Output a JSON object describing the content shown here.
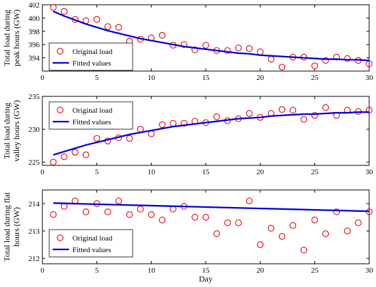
{
  "chart_data": [
    {
      "type": "scatter",
      "ylabel_lines": [
        "Total load during",
        "peak hours (GW)"
      ],
      "xlim": [
        0,
        30
      ],
      "ylim": [
        392,
        402
      ],
      "xticks": [
        0,
        5,
        10,
        15,
        20,
        25,
        30
      ],
      "yticks": [
        394,
        396,
        398,
        400,
        402
      ],
      "legend_position": "bottom-left",
      "series": [
        {
          "name": "Original load",
          "style": "markers",
          "x": [
            1,
            2,
            3,
            4,
            5,
            6,
            7,
            8,
            9,
            10,
            11,
            12,
            13,
            14,
            15,
            16,
            17,
            18,
            19,
            20,
            21,
            22,
            23,
            24,
            25,
            26,
            27,
            28,
            29,
            30
          ],
          "y": [
            401.6,
            401.0,
            399.8,
            399.6,
            399.8,
            398.7,
            398.6,
            396.5,
            396.8,
            397.0,
            397.4,
            395.9,
            396.0,
            395.2,
            395.9,
            395.1,
            395.1,
            395.5,
            395.4,
            394.9,
            393.8,
            392.6,
            394.1,
            394.1,
            392.8,
            393.6,
            394.1,
            393.9,
            393.6,
            393.1
          ]
        },
        {
          "name": "Fitted values",
          "style": "line",
          "x": [
            1,
            2,
            3,
            4,
            5,
            6,
            7,
            8,
            9,
            10,
            11,
            12,
            13,
            14,
            15,
            16,
            17,
            18,
            19,
            20,
            21,
            22,
            23,
            24,
            25,
            26,
            27,
            28,
            29,
            30
          ],
          "y": [
            401.0,
            400.3,
            399.7,
            399.1,
            398.6,
            398.1,
            397.7,
            397.3,
            396.9,
            396.6,
            396.3,
            396.0,
            395.7,
            395.5,
            395.3,
            395.1,
            394.9,
            394.7,
            394.6,
            394.4,
            394.3,
            394.2,
            394.1,
            394.0,
            393.9,
            393.8,
            393.8,
            393.7,
            393.7,
            393.6
          ]
        }
      ]
    },
    {
      "type": "scatter",
      "ylabel_lines": [
        "Total load during",
        "valley hours (GW)"
      ],
      "xlim": [
        0,
        30
      ],
      "ylim": [
        224.5,
        235
      ],
      "xticks": [
        0,
        5,
        10,
        15,
        20,
        25,
        30
      ],
      "yticks": [
        225,
        230,
        235
      ],
      "legend_position": "top-left",
      "series": [
        {
          "name": "Original load",
          "style": "markers",
          "x": [
            1,
            2,
            3,
            4,
            5,
            6,
            7,
            8,
            9,
            10,
            11,
            12,
            13,
            14,
            15,
            16,
            17,
            18,
            19,
            20,
            21,
            22,
            23,
            24,
            25,
            26,
            27,
            28,
            29,
            30
          ],
          "y": [
            225.0,
            225.8,
            226.5,
            226.1,
            228.6,
            228.2,
            228.7,
            228.6,
            230.0,
            229.3,
            230.7,
            230.9,
            230.9,
            231.2,
            231.0,
            231.9,
            231.3,
            231.6,
            232.4,
            231.8,
            232.4,
            233.0,
            232.9,
            231.5,
            232.1,
            233.3,
            232.1,
            232.9,
            232.7,
            232.9
          ]
        },
        {
          "name": "Fitted values",
          "style": "line",
          "x": [
            1,
            2,
            3,
            4,
            5,
            6,
            7,
            8,
            9,
            10,
            11,
            12,
            13,
            14,
            15,
            16,
            17,
            18,
            19,
            20,
            21,
            22,
            23,
            24,
            25,
            26,
            27,
            28,
            29,
            30
          ],
          "y": [
            226.1,
            226.6,
            227.1,
            227.6,
            228.0,
            228.4,
            228.8,
            229.2,
            229.5,
            229.8,
            230.1,
            230.4,
            230.6,
            230.8,
            231.0,
            231.2,
            231.4,
            231.6,
            231.7,
            231.8,
            232.0,
            232.1,
            232.2,
            232.3,
            232.3,
            232.4,
            232.5,
            232.5,
            232.6,
            232.6
          ]
        }
      ]
    },
    {
      "type": "scatter",
      "ylabel_lines": [
        "Total load during flat",
        "hours (GW)"
      ],
      "xlabel": "Day",
      "xlim": [
        0,
        30
      ],
      "ylim": [
        211.8,
        214.5
      ],
      "xticks": [
        0,
        5,
        10,
        15,
        20,
        25,
        30
      ],
      "yticks": [
        212,
        213,
        214
      ],
      "legend_position": "bottom-left",
      "series": [
        {
          "name": "Original load",
          "style": "markers",
          "x": [
            1,
            2,
            3,
            4,
            5,
            6,
            7,
            8,
            9,
            10,
            11,
            12,
            13,
            14,
            15,
            16,
            17,
            18,
            19,
            20,
            21,
            22,
            23,
            24,
            25,
            26,
            27,
            28,
            29,
            30
          ],
          "y": [
            213.6,
            213.9,
            214.1,
            213.7,
            214.0,
            213.7,
            214.1,
            213.6,
            213.8,
            213.6,
            213.4,
            213.8,
            213.9,
            213.5,
            213.5,
            212.9,
            213.3,
            213.3,
            214.1,
            212.5,
            213.1,
            212.8,
            213.2,
            212.3,
            213.4,
            212.9,
            213.7,
            213.0,
            213.3,
            213.7
          ]
        },
        {
          "name": "Fitted values",
          "style": "line",
          "x": [
            1,
            30
          ],
          "y": [
            214.02,
            213.72
          ]
        }
      ]
    }
  ],
  "colors": {
    "marker": "#e8000b",
    "fit_line": "#0000d8",
    "axis": "#000000"
  }
}
